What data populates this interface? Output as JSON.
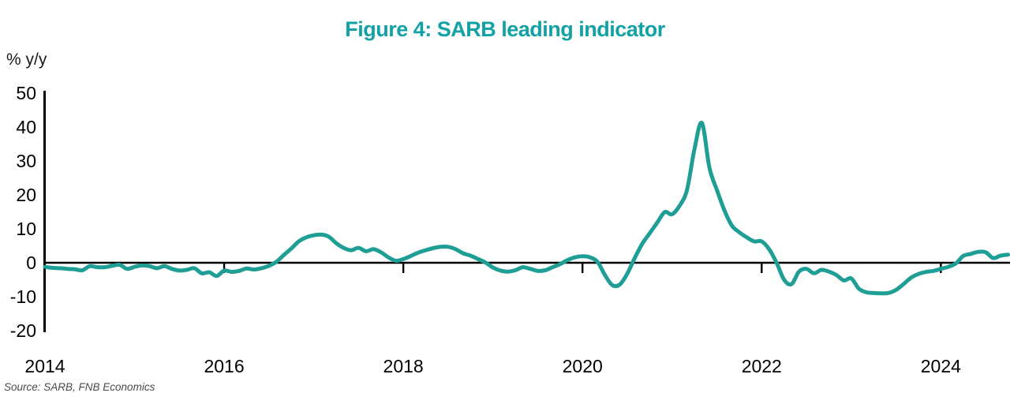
{
  "title": "Figure 4: SARB leading indicator",
  "y_axis_unit": "% y/y",
  "source_note": "Source: SARB, FNB Economics",
  "colors": {
    "title_teal": "#12A2A6",
    "line_teal": "#1E9E95",
    "axis_black": "#000000"
  },
  "chart_data": {
    "type": "line",
    "title": "Figure 4: SARB leading indicator",
    "xlabel": "",
    "ylabel": "% y/y",
    "ylim": [
      -20,
      50
    ],
    "y_ticks": [
      50,
      40,
      30,
      20,
      10,
      0,
      -10,
      -20
    ],
    "x_tick_years": [
      2014,
      2016,
      2018,
      2020,
      2022,
      2024
    ],
    "frequency": "monthly",
    "x_start": "2014-01",
    "x_end": "2024-10",
    "grid": "off",
    "legend_position": "none",
    "zero_line": true,
    "series": [
      {
        "name": "SARB leading indicator (% y/y)",
        "values": [
          -1.2,
          -1.5,
          -1.6,
          -1.8,
          -1.9,
          -2.2,
          -1.0,
          -1.3,
          -1.3,
          -0.9,
          -0.6,
          -1.8,
          -1.2,
          -0.8,
          -1.0,
          -1.6,
          -1.0,
          -1.8,
          -2.3,
          -2.1,
          -1.6,
          -3.1,
          -2.8,
          -3.9,
          -2.3,
          -2.7,
          -2.4,
          -1.7,
          -2.0,
          -1.6,
          -0.9,
          0.3,
          2.3,
          4.2,
          6.3,
          7.5,
          8.1,
          8.3,
          7.7,
          5.8,
          4.4,
          3.7,
          4.4,
          3.4,
          4.0,
          3.1,
          1.6,
          0.6,
          1.1,
          2.0,
          3.0,
          3.7,
          4.3,
          4.7,
          4.7,
          4.0,
          2.8,
          2.1,
          1.1,
          0.1,
          -1.4,
          -2.3,
          -2.6,
          -2.2,
          -1.3,
          -1.8,
          -2.4,
          -2.2,
          -1.3,
          -0.4,
          0.8,
          1.6,
          1.9,
          1.6,
          0.3,
          -3.6,
          -6.6,
          -6.4,
          -3.2,
          1.4,
          5.6,
          8.7,
          11.8,
          14.9,
          14.3,
          16.8,
          21.5,
          33.5,
          41.2,
          28.0,
          21.5,
          15.5,
          11.0,
          9.0,
          7.5,
          6.3,
          6.3,
          4.0,
          0.0,
          -5.0,
          -6.3,
          -2.6,
          -1.8,
          -3.1,
          -2.1,
          -2.6,
          -3.6,
          -5.2,
          -4.6,
          -7.6,
          -8.7,
          -8.9,
          -9.0,
          -8.9,
          -8.0,
          -6.3,
          -4.4,
          -3.3,
          -2.7,
          -2.4,
          -1.8,
          -1.2,
          -0.2,
          2.0,
          2.6,
          3.2,
          3.1,
          1.4,
          2.1,
          2.4
        ]
      }
    ]
  }
}
